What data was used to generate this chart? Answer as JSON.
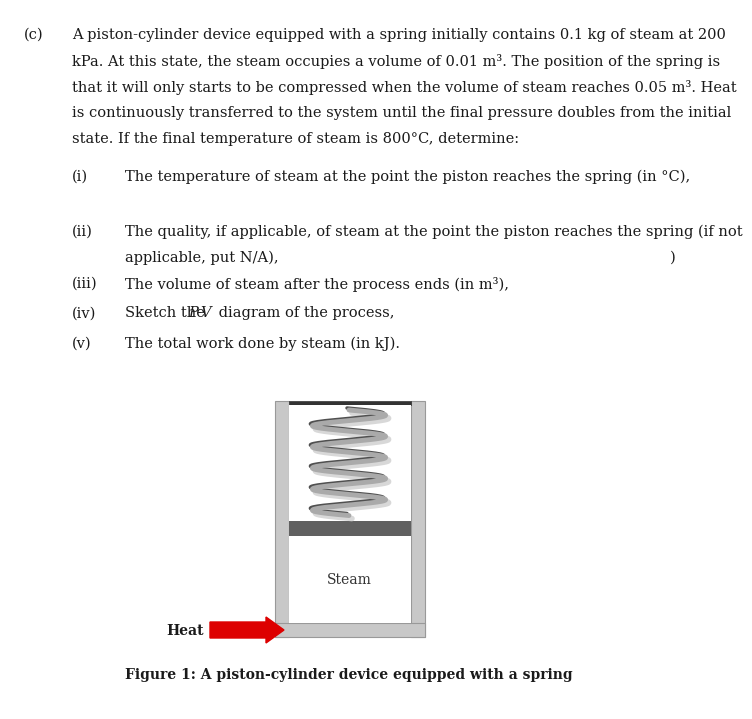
{
  "bg_color": "#ffffff",
  "text_color": "#1a1a1a",
  "para_lines": [
    "A piston-cylinder device equipped with a spring initially contains 0.1 kg of steam at 200",
    "kPa. At this state, the steam occupies a volume of 0.01 m³. The position of the spring is",
    "that it will only starts to be compressed when the volume of steam reaches 0.05 m³. Heat",
    "is continuously transferred to the system until the final pressure doubles from the initial",
    "state. If the final temperature of steam is 800°C, determine:"
  ],
  "item_i": "The temperature of steam at the point the piston reaches the spring (in °C),",
  "item_ii_1": "The quality, if applicable, of steam at the point the piston reaches the spring (if not",
  "item_ii_2": "applicable, put N/A),",
  "item_iii": "The volume of steam after the process ends (in m³),",
  "item_iv": "Sketch the P-V diagram of the process,",
  "item_iv_italic": "P-V",
  "item_v": "The total work done by steam (in kJ).",
  "fig_caption": "Figure 1: A piston-cylinder device equipped with a spring",
  "wall_color": "#c8c8c8",
  "wall_edge": "#999999",
  "piston_color": "#606060",
  "spring_color_dark": "#909090",
  "spring_color_light": "#d0d0d0",
  "arrow_color": "#dd0000",
  "steam_text_color": "#333333",
  "fs_main": 10.5,
  "fs_fig_caption": 10.0
}
